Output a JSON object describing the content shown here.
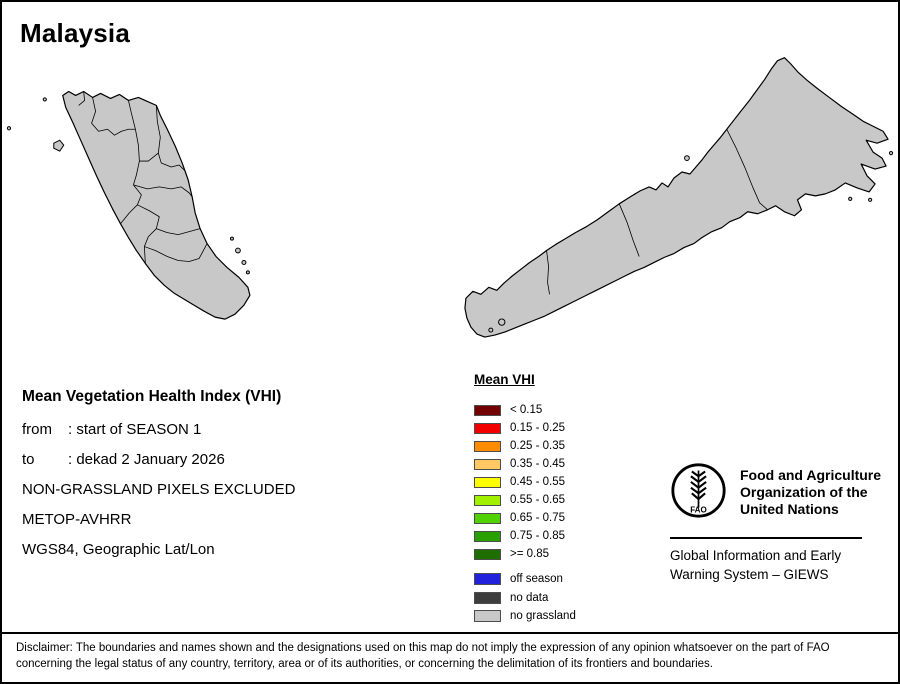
{
  "title": "Malaysia",
  "meta": {
    "heading": "Mean Vegetation Health Index (VHI)",
    "from_label": "from",
    "from_value": ": start of SEASON 1",
    "to_label": "to",
    "to_value": ": dekad 2 January 2026",
    "line_excluded": "NON-GRASSLAND PIXELS EXCLUDED",
    "line_sensor": "METOP-AVHRR",
    "line_projection": "WGS84, Geographic Lat/Lon"
  },
  "legend": {
    "title": "Mean VHI",
    "classes": [
      {
        "label": "< 0.15",
        "color": "#730000"
      },
      {
        "label": "0.15 - 0.25",
        "color": "#f20000"
      },
      {
        "label": "0.25 - 0.35",
        "color": "#ff8c00"
      },
      {
        "label": "0.35 - 0.45",
        "color": "#ffc864"
      },
      {
        "label": "0.45 - 0.55",
        "color": "#ffff00"
      },
      {
        "label": "0.55 - 0.65",
        "color": "#a0f000"
      },
      {
        "label": "0.65 - 0.75",
        "color": "#50d200"
      },
      {
        "label": "0.75 - 0.85",
        "color": "#28a000"
      },
      {
        "label": ">= 0.85",
        "color": "#1e6e00"
      }
    ],
    "extra": [
      {
        "label": "off season",
        "color": "#2222dd"
      },
      {
        "label": "no data",
        "color": "#3c3c3c"
      },
      {
        "label": "no grassland",
        "color": "#c8c8c8"
      }
    ]
  },
  "map": {
    "land_color": "#c8c8c8",
    "outline_color": "#000000"
  },
  "fao": {
    "logo_text": "FAO",
    "org_lines": [
      "Food and Agriculture",
      "Organization of the",
      "United Nations"
    ],
    "giews_lines": [
      "Global Information and Early",
      "Warning System – GIEWS"
    ]
  },
  "disclaimer": "Disclaimer: The boundaries and names shown and the designations used on this map do not imply the expression of any opinion whatsoever on the part of FAO concerning the legal status of any country, territory, area or of its authorities, or concerning the delimitation of its frontiers and boundaries."
}
